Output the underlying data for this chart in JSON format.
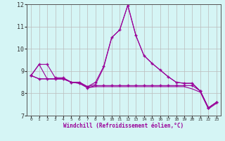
{
  "xlabel": "Windchill (Refroidissement éolien,°C)",
  "x": [
    0,
    1,
    2,
    3,
    4,
    5,
    6,
    7,
    8,
    9,
    10,
    11,
    12,
    13,
    14,
    15,
    16,
    17,
    18,
    19,
    20,
    21,
    22,
    23
  ],
  "line1": [
    8.8,
    9.3,
    9.3,
    8.7,
    8.7,
    8.5,
    8.5,
    8.3,
    8.5,
    9.2,
    10.5,
    10.85,
    11.95,
    10.6,
    9.7,
    9.35,
    9.05,
    8.75,
    8.5,
    8.45,
    8.45,
    8.1,
    7.35,
    7.6
  ],
  "line2": [
    8.8,
    9.3,
    8.65,
    8.65,
    8.65,
    8.5,
    8.5,
    8.3,
    8.4,
    9.15,
    10.5,
    10.85,
    11.95,
    10.6,
    9.7,
    9.35,
    9.05,
    8.75,
    8.5,
    8.45,
    8.45,
    8.1,
    7.35,
    7.6
  ],
  "line3": [
    8.8,
    8.65,
    8.65,
    8.65,
    8.65,
    8.5,
    8.45,
    8.25,
    8.35,
    8.35,
    8.35,
    8.35,
    8.35,
    8.35,
    8.35,
    8.35,
    8.35,
    8.35,
    8.35,
    8.35,
    8.35,
    8.1,
    7.35,
    7.6
  ],
  "line4": [
    8.8,
    8.65,
    8.65,
    8.65,
    8.65,
    8.5,
    8.45,
    8.25,
    8.3,
    8.3,
    8.3,
    8.3,
    8.3,
    8.3,
    8.3,
    8.3,
    8.3,
    8.3,
    8.3,
    8.3,
    8.2,
    8.05,
    7.3,
    7.55
  ],
  "line_color": "#990099",
  "marker": "+",
  "bg_color": "#d5f5f5",
  "grid_color": "#bbbbbb",
  "ylim": [
    7,
    12
  ],
  "yticks": [
    7,
    8,
    9,
    10,
    11,
    12
  ]
}
